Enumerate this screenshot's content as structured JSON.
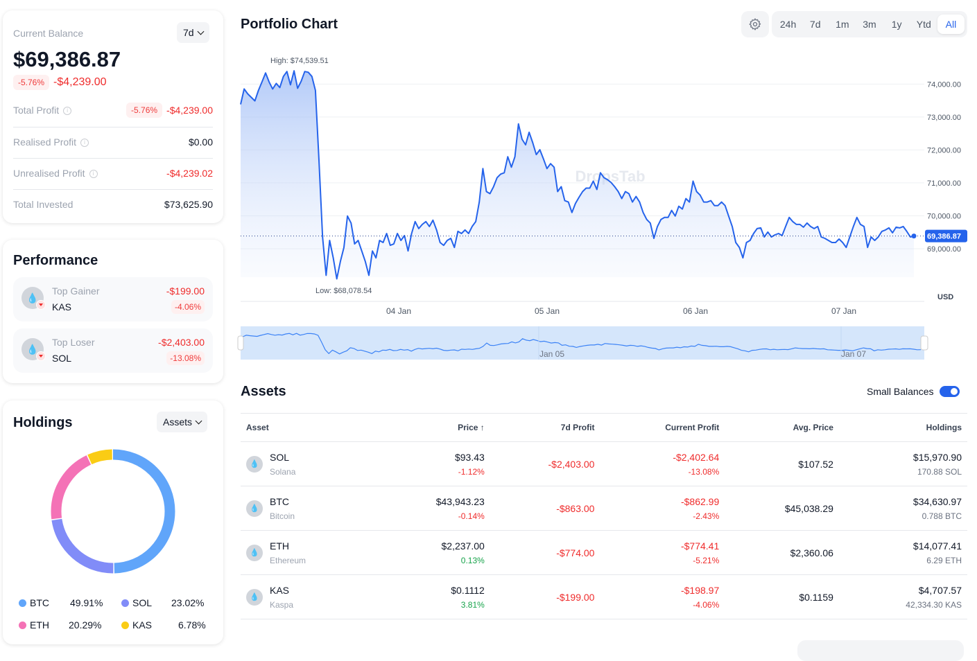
{
  "balance": {
    "label": "Current Balance",
    "period": "7d",
    "value": "$69,386.87",
    "change_pct": "-5.76%",
    "change_abs": "-$4,239.00",
    "rows": [
      {
        "label": "Total Profit",
        "pct": "-5.76%",
        "value": "-$4,239.00"
      },
      {
        "label": "Realised Profit",
        "value": "$0.00"
      },
      {
        "label": "Unrealised Profit",
        "value": "-$4,239.02"
      },
      {
        "label": "Total Invested",
        "value": "$73,625.90"
      }
    ]
  },
  "performance": {
    "title": "Performance",
    "items": [
      {
        "label": "Top Gainer",
        "symbol": "KAS",
        "value": "-$199.00",
        "pct": "-4.06%"
      },
      {
        "label": "Top Loser",
        "symbol": "SOL",
        "value": "-$2,403.00",
        "pct": "-13.08%"
      }
    ]
  },
  "holdings": {
    "title": "Holdings",
    "filter": "Assets",
    "segments": [
      {
        "symbol": "BTC",
        "pct": "49.91%",
        "value": 49.91,
        "color": "#60a5fa"
      },
      {
        "symbol": "SOL",
        "pct": "23.02%",
        "value": 23.02,
        "color": "#818cf8"
      },
      {
        "symbol": "ETH",
        "pct": "20.29%",
        "value": 20.29,
        "color": "#f472b6"
      },
      {
        "symbol": "KAS",
        "pct": "6.78%",
        "value": 6.78,
        "color": "#facc15"
      }
    ]
  },
  "chart": {
    "title": "Portfolio Chart",
    "settings_icon": "gear-icon",
    "timeframes": [
      "24h",
      "7d",
      "1m",
      "3m",
      "1y",
      "Ytd",
      "All"
    ],
    "active_timeframe": "All",
    "watermark": "DropsTab"
  },
  "chart_data": {
    "type": "area",
    "title": "Portfolio Chart",
    "ylabel": "USD",
    "ylim": [
      67400,
      74450
    ],
    "yticks": [
      "74,000.00",
      "73,000.00",
      "72,000.00",
      "71,000.00",
      "70,000.00",
      "69,000.00"
    ],
    "ytick_values": [
      74000,
      73000,
      72000,
      71000,
      70000,
      69000
    ],
    "xticks": [
      "04 Jan",
      "05 Jan",
      "06 Jan",
      "07 Jan"
    ],
    "navigator_labels": [
      "Jan 05",
      "Jan 07"
    ],
    "high_label": "High: $74,539.51",
    "low_label": "Low: $68,078.54",
    "current_label": "69,386.87",
    "current_value": 69386.87,
    "line_color": "#2563eb",
    "values": [
      73385,
      73852,
      73703,
      73597,
      73491,
      73809,
      74064,
      74339,
      74064,
      73852,
      74021,
      73894,
      74233,
      74382,
      73979,
      74403,
      73873,
      74085,
      74382,
      74360,
      74233,
      73809,
      71689,
      69357,
      68191,
      69251,
      68721,
      68085,
      68615,
      69039,
      69993,
      69781,
      69145,
      69251,
      68933,
      68615,
      68191,
      68933,
      68721,
      69251,
      69188,
      69463,
      69103,
      69145,
      69463,
      69251,
      69400,
      68933,
      69463,
      69824,
      69612,
      69739,
      69824,
      69675,
      69866,
      69569,
      69188,
      69103,
      69251,
      69315,
      69039,
      69527,
      69463,
      69569,
      69463,
      69675,
      69824,
      70417,
      71435,
      70735,
      70672,
      70884,
      71159,
      71265,
      71308,
      71795,
      71477,
      71795,
      72792,
      72325,
      72156,
      72537,
      72219,
      71859,
      72007,
      71732,
      71435,
      71583,
      71477,
      70735,
      70884,
      70460,
      70417,
      70099,
      70375,
      70566,
      70735,
      70841,
      70841,
      71053,
      70799,
      71308,
      71159,
      71096,
      71011,
      70884,
      70735,
      70523,
      70735,
      70672,
      70417,
      70587,
      70417,
      70099,
      69887,
      69781,
      69315,
      69675,
      69887,
      69951,
      69951,
      70163,
      69993,
      70290,
      70205,
      70523,
      70417,
      71053,
      70735,
      70629,
      70417,
      70417,
      70460,
      70311,
      70311,
      70417,
      70311,
      69993,
      69675,
      69188,
      69039,
      68721,
      69188,
      69251,
      69463,
      69612,
      69633,
      69357,
      69506,
      69357,
      69421,
      69463,
      69400,
      69675,
      69951,
      69824,
      69739,
      69739,
      69654,
      69781,
      69675,
      69612,
      69675,
      69357,
      69315,
      69251,
      69188,
      69188,
      69294,
      69188,
      69039,
      69357,
      69675,
      69951,
      69739,
      69675,
      69039,
      69357,
      69251,
      69357,
      69527,
      69569,
      69633,
      69484,
      69654,
      69633,
      69675,
      69527,
      69357,
      69386.87
    ]
  },
  "assets": {
    "title": "Assets",
    "small_balances_label": "Small Balances",
    "small_balances_on": true,
    "columns": [
      "Asset",
      "Price",
      "7d Profit",
      "Current Profit",
      "Avg. Price",
      "Holdings"
    ],
    "sort_icon": "arrow-up-icon",
    "rows": [
      {
        "symbol": "SOL",
        "name": "Solana",
        "price": "$93.43",
        "price_change": "-1.12%",
        "profit_7d": "-$2,403.00",
        "current_profit": "-$2,402.64",
        "current_profit_pct": "-13.08%",
        "avg_price": "$107.52",
        "holdings_value": "$15,970.90",
        "holdings_amount": "170.88 SOL"
      },
      {
        "symbol": "BTC",
        "name": "Bitcoin",
        "price": "$43,943.23",
        "price_change": "-0.14%",
        "profit_7d": "-$863.00",
        "current_profit": "-$862.99",
        "current_profit_pct": "-2.43%",
        "avg_price": "$45,038.29",
        "holdings_value": "$34,630.97",
        "holdings_amount": "0.788 BTC"
      },
      {
        "symbol": "ETH",
        "name": "Ethereum",
        "price": "$2,237.00",
        "price_change": "0.13%",
        "profit_7d": "-$774.00",
        "current_profit": "-$774.41",
        "current_profit_pct": "-5.21%",
        "avg_price": "$2,360.06",
        "holdings_value": "$14,077.41",
        "holdings_amount": "6.29 ETH"
      },
      {
        "symbol": "KAS",
        "name": "Kaspa",
        "price": "$0.1112",
        "price_change": "3.81%",
        "profit_7d": "-$199.00",
        "current_profit": "-$198.97",
        "current_profit_pct": "-4.06%",
        "avg_price": "$0.1159",
        "holdings_value": "$4,707.57",
        "holdings_amount": "42,334.30 KAS"
      }
    ]
  }
}
